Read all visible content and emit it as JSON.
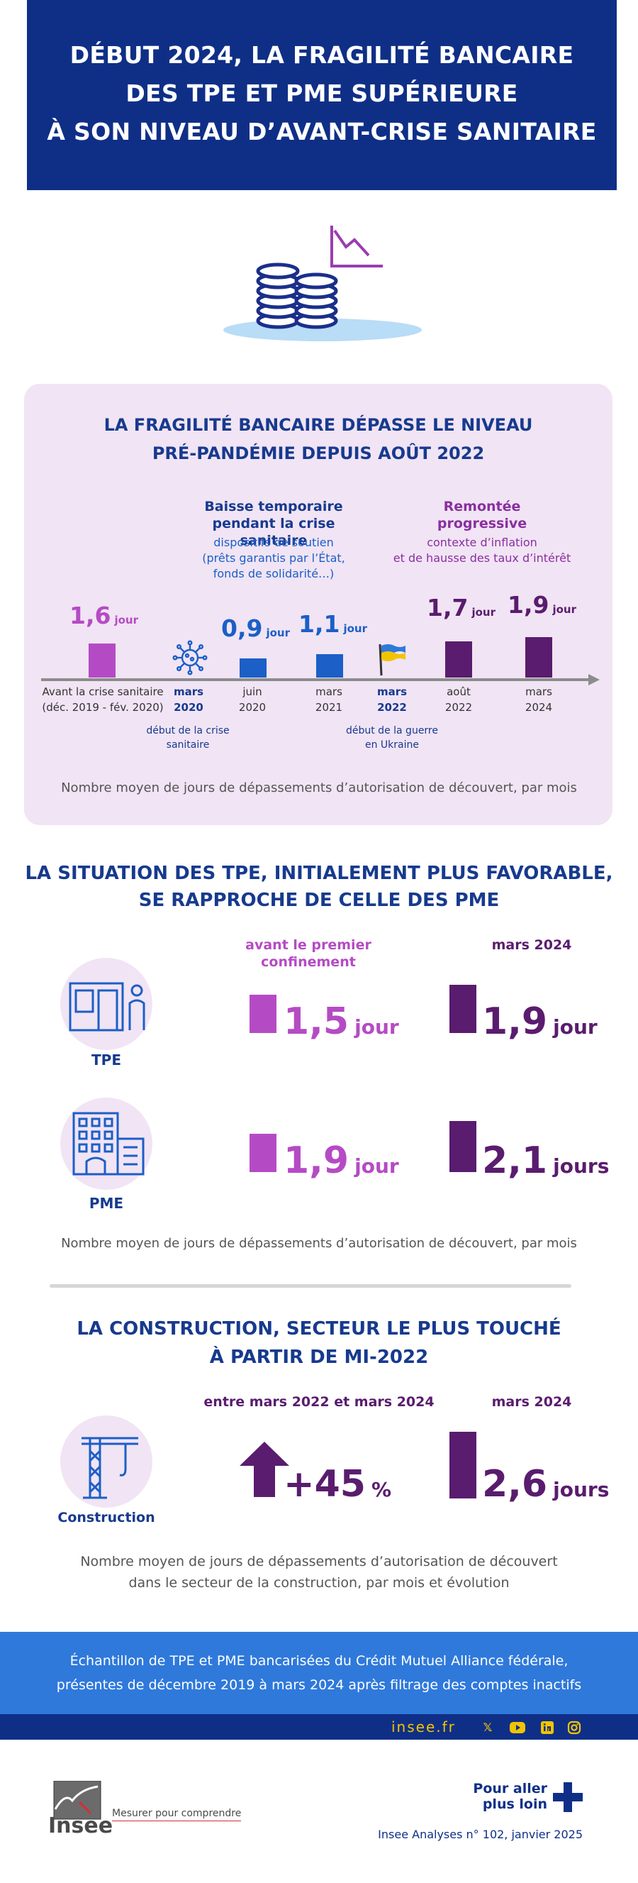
{
  "header": {
    "line1": "DÉBUT 2024, LA FRAGILITÉ BANCAIRE",
    "line2": "DES TPE ET PME SUPÉRIEURE",
    "line3": "À SON NIVEAU D’AVANT-CRISE SANITAIRE"
  },
  "section1": {
    "title_line1": "LA FRAGILITÉ BANCAIRE DÉPASSE LE NIVEAU",
    "title_line2": "PRÉ-PANDÉMIE DEPUIS AOÛT 2022",
    "note_left_title1": "Baisse temporaire",
    "note_left_title2": "pendant la crise sanitaire",
    "note_left_sub1": "dispositifs de soutien",
    "note_left_sub2": "(prêts garantis par l’État,",
    "note_left_sub3": "fonds de solidarité…)",
    "note_right_title1": "Remontée",
    "note_right_title2": "progressive",
    "note_right_sub1": "contexte d’inflation",
    "note_right_sub2": "et de hausse des taux d’intérêt",
    "event_covid_1": "début de la crise",
    "event_covid_2": "sanitaire",
    "event_ukraine_1": "début de la guerre",
    "event_ukraine_2": "en Ukraine",
    "caption": "Nombre moyen de jours de dépassements d’autorisation de découvert, par mois"
  },
  "chart_data": {
    "type": "bar",
    "title": "LA FRAGILITÉ BANCAIRE DÉPASSE LE NIVEAU PRÉ-PANDÉMIE DEPUIS AOÛT 2022",
    "ylabel": "Nombre moyen de jours de dépassements d’autorisation de découvert, par mois",
    "unit": "jour",
    "points": [
      {
        "label1": "Avant la crise sanitaire",
        "label2": "(déc. 2019 - fév. 2020)",
        "value": 1.6,
        "display": "1,6",
        "color": "#b54bc4"
      },
      {
        "label1": "juin",
        "label2": "2020",
        "value": 0.9,
        "display": "0,9",
        "color": "#1b5fc7"
      },
      {
        "label1": "mars",
        "label2": "2021",
        "value": 1.1,
        "display": "1,1",
        "color": "#1b5fc7"
      },
      {
        "label1": "août",
        "label2": "2022",
        "value": 1.7,
        "display": "1,7",
        "color": "#5a1c6e"
      },
      {
        "label1": "mars",
        "label2": "2024",
        "value": 1.9,
        "display": "1,9",
        "color": "#5a1c6e"
      }
    ],
    "markers": [
      {
        "label1": "mars",
        "label2": "2020"
      },
      {
        "label1": "mars",
        "label2": "2022"
      }
    ]
  },
  "section2": {
    "title_line1": "LA SITUATION DES TPE, INITIALEMENT PLUS FAVORABLE,",
    "title_line2": "SE RAPPROCHE DE CELLE DES PME",
    "col1_line1": "avant le premier",
    "col1_line2": "confinement",
    "col2": "mars 2024",
    "tpe_label": "TPE",
    "pme_label": "PME",
    "tpe_before": "1,5",
    "tpe_before_unit": "jour",
    "tpe_after": "1,9",
    "tpe_after_unit": "jour",
    "pme_before": "1,9",
    "pme_before_unit": "jour",
    "pme_after": "2,1",
    "pme_after_unit": "jours",
    "caption": "Nombre moyen de jours de dépassements d’autorisation de découvert, par mois"
  },
  "section3": {
    "title_line1": "LA CONSTRUCTION, SECTEUR LE PLUS TOUCHÉ",
    "title_line2": "À PARTIR DE MI-2022",
    "col1": "entre mars 2022 et mars 2024",
    "col2": "mars 2024",
    "label": "Construction",
    "evolution": "+45",
    "evolution_unit": "%",
    "value": "2,6",
    "value_unit": "jours",
    "caption_line1": "Nombre moyen de jours de dépassements d’autorisation de découvert",
    "caption_line2": "dans le secteur de la construction, par mois et évolution"
  },
  "footer": {
    "sample_line1": "Échantillon de TPE et PME bancarisées du Crédit Mutuel Alliance fédérale,",
    "sample_line2": "présentes de décembre 2019 à mars 2024 après filtrage des comptes inactifs",
    "site": "insee.fr",
    "logo_text": "Insee",
    "tagline": "Mesurer pour comprendre",
    "more_line1": "Pour aller",
    "more_line2": "plus loin",
    "publication": "Insee Analyses n° 102, janvier 2025"
  },
  "colors": {
    "navy": "#0f2f87",
    "blue": "#1b5fc7",
    "light_purple": "#b54bc4",
    "dark_purple": "#5a1c6e",
    "panel": "#f1e4f4",
    "band_blue": "#2f79db",
    "yellow": "#f2c400"
  }
}
